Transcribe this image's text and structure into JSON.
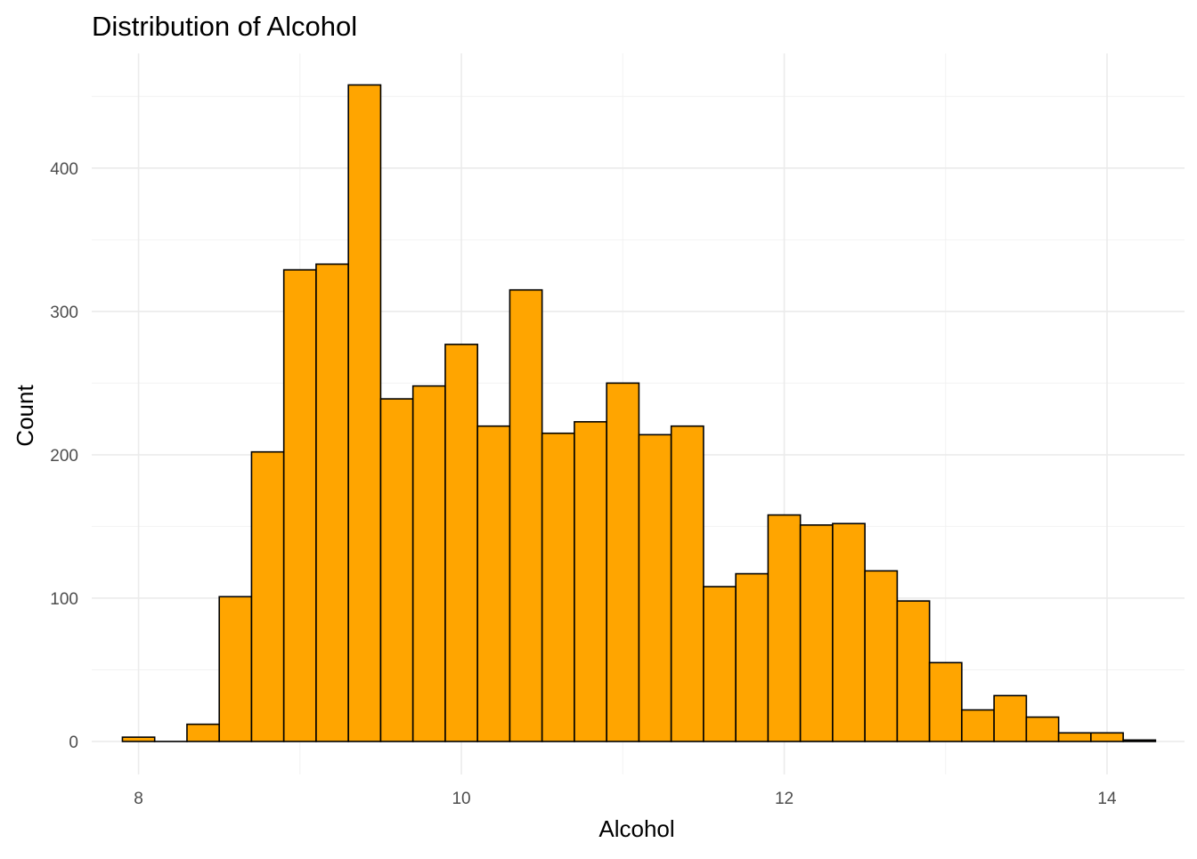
{
  "chart_data": {
    "type": "bar",
    "title": "Distribution of Alcohol",
    "xlabel": "Alcohol",
    "ylabel": "Count",
    "xlim": [
      7.71,
      14.48
    ],
    "ylim": [
      -23,
      480
    ],
    "x_ticks": [
      8,
      10,
      12,
      14
    ],
    "y_ticks": [
      0,
      100,
      200,
      300,
      400
    ],
    "x_tick_labels": [
      "8",
      "10",
      "12",
      "14"
    ],
    "y_tick_labels": [
      "0",
      "100",
      "200",
      "300",
      "400"
    ],
    "grid": true,
    "bin_width": 0.2,
    "bins": [
      {
        "x0": 7.9,
        "x1": 8.1,
        "count": 3
      },
      {
        "x0": 8.1,
        "x1": 8.3,
        "count": 0
      },
      {
        "x0": 8.3,
        "x1": 8.5,
        "count": 12
      },
      {
        "x0": 8.5,
        "x1": 8.7,
        "count": 101
      },
      {
        "x0": 8.7,
        "x1": 8.9,
        "count": 202
      },
      {
        "x0": 8.9,
        "x1": 9.1,
        "count": 329
      },
      {
        "x0": 9.1,
        "x1": 9.3,
        "count": 333
      },
      {
        "x0": 9.3,
        "x1": 9.5,
        "count": 458
      },
      {
        "x0": 9.5,
        "x1": 9.7,
        "count": 239
      },
      {
        "x0": 9.7,
        "x1": 9.9,
        "count": 248
      },
      {
        "x0": 9.9,
        "x1": 10.1,
        "count": 277
      },
      {
        "x0": 10.1,
        "x1": 10.3,
        "count": 220
      },
      {
        "x0": 10.3,
        "x1": 10.5,
        "count": 315
      },
      {
        "x0": 10.5,
        "x1": 10.7,
        "count": 215
      },
      {
        "x0": 10.7,
        "x1": 10.9,
        "count": 223
      },
      {
        "x0": 10.9,
        "x1": 11.1,
        "count": 250
      },
      {
        "x0": 11.1,
        "x1": 11.3,
        "count": 214
      },
      {
        "x0": 11.3,
        "x1": 11.5,
        "count": 220
      },
      {
        "x0": 11.5,
        "x1": 11.7,
        "count": 108
      },
      {
        "x0": 11.7,
        "x1": 11.9,
        "count": 117
      },
      {
        "x0": 11.9,
        "x1": 12.1,
        "count": 158
      },
      {
        "x0": 12.1,
        "x1": 12.3,
        "count": 151
      },
      {
        "x0": 12.3,
        "x1": 12.5,
        "count": 152
      },
      {
        "x0": 12.5,
        "x1": 12.7,
        "count": 119
      },
      {
        "x0": 12.7,
        "x1": 12.9,
        "count": 98
      },
      {
        "x0": 12.9,
        "x1": 13.1,
        "count": 55
      },
      {
        "x0": 13.1,
        "x1": 13.3,
        "count": 22
      },
      {
        "x0": 13.3,
        "x1": 13.5,
        "count": 32
      },
      {
        "x0": 13.5,
        "x1": 13.7,
        "count": 17
      },
      {
        "x0": 13.7,
        "x1": 13.9,
        "count": 6
      },
      {
        "x0": 13.9,
        "x1": 14.1,
        "count": 6
      },
      {
        "x0": 14.1,
        "x1": 14.3,
        "count": 1
      }
    ],
    "colors": {
      "bar_fill": "#FFA500",
      "bar_outline": "#000000"
    }
  }
}
